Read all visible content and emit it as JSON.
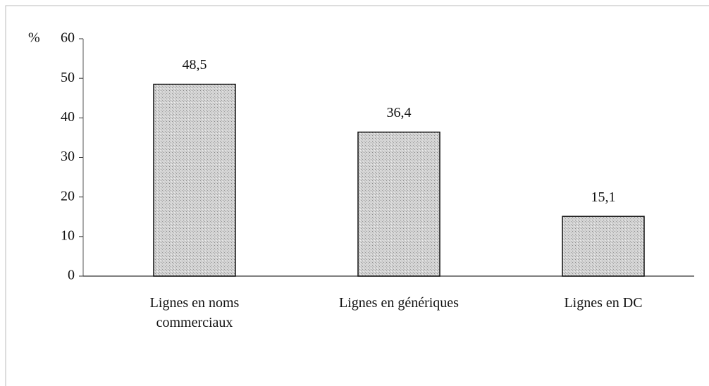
{
  "chart_data": {
    "type": "bar",
    "y_label": "%",
    "categories": [
      "Lignes en noms commerciaux",
      "Lignes en génériques",
      "Lignes en DC"
    ],
    "values": [
      48.5,
      36.4,
      15.1
    ],
    "value_labels": [
      "48,5",
      "36,4",
      "15,1"
    ],
    "color": "#cfcfcf",
    "ylim": [
      0,
      60
    ],
    "yticks": [
      0,
      10,
      20,
      30,
      40,
      50,
      60
    ],
    "grid": false
  }
}
